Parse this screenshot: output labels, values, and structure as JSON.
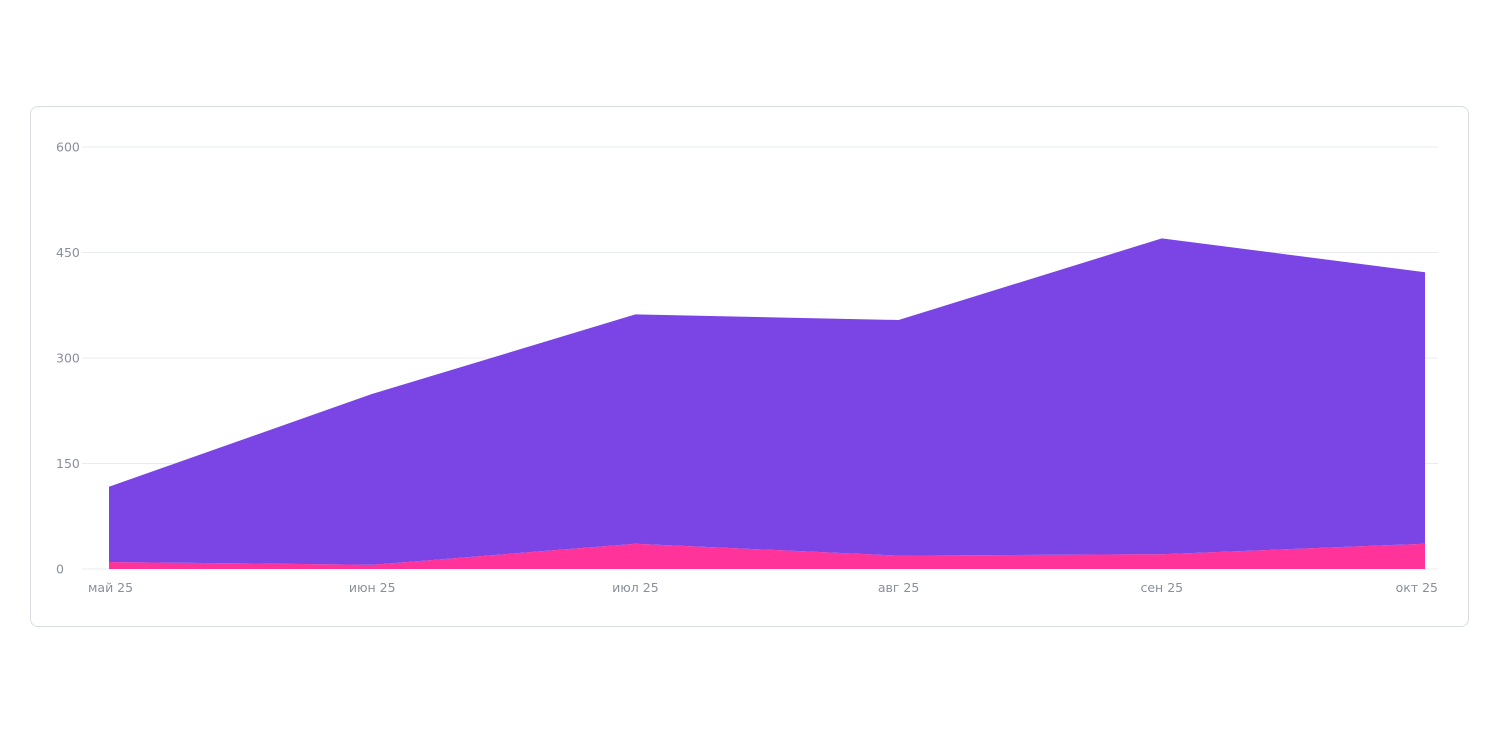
{
  "chart_data": {
    "type": "area",
    "stacked": true,
    "categories": [
      "май 25",
      "июн 25",
      "июл 25",
      "авг 25",
      "сен 25",
      "окт 25"
    ],
    "series": [
      {
        "color": "#ff3399",
        "values": [
          10,
          6,
          36,
          19,
          21,
          36
        ]
      },
      {
        "color": "#7b45e6",
        "values": [
          107,
          243,
          326,
          335,
          449,
          386
        ]
      }
    ],
    "y_ticks": [
      "0",
      "150",
      "300",
      "450",
      "600"
    ],
    "ylim": [
      0,
      600
    ],
    "grid": true,
    "legend": "none"
  }
}
